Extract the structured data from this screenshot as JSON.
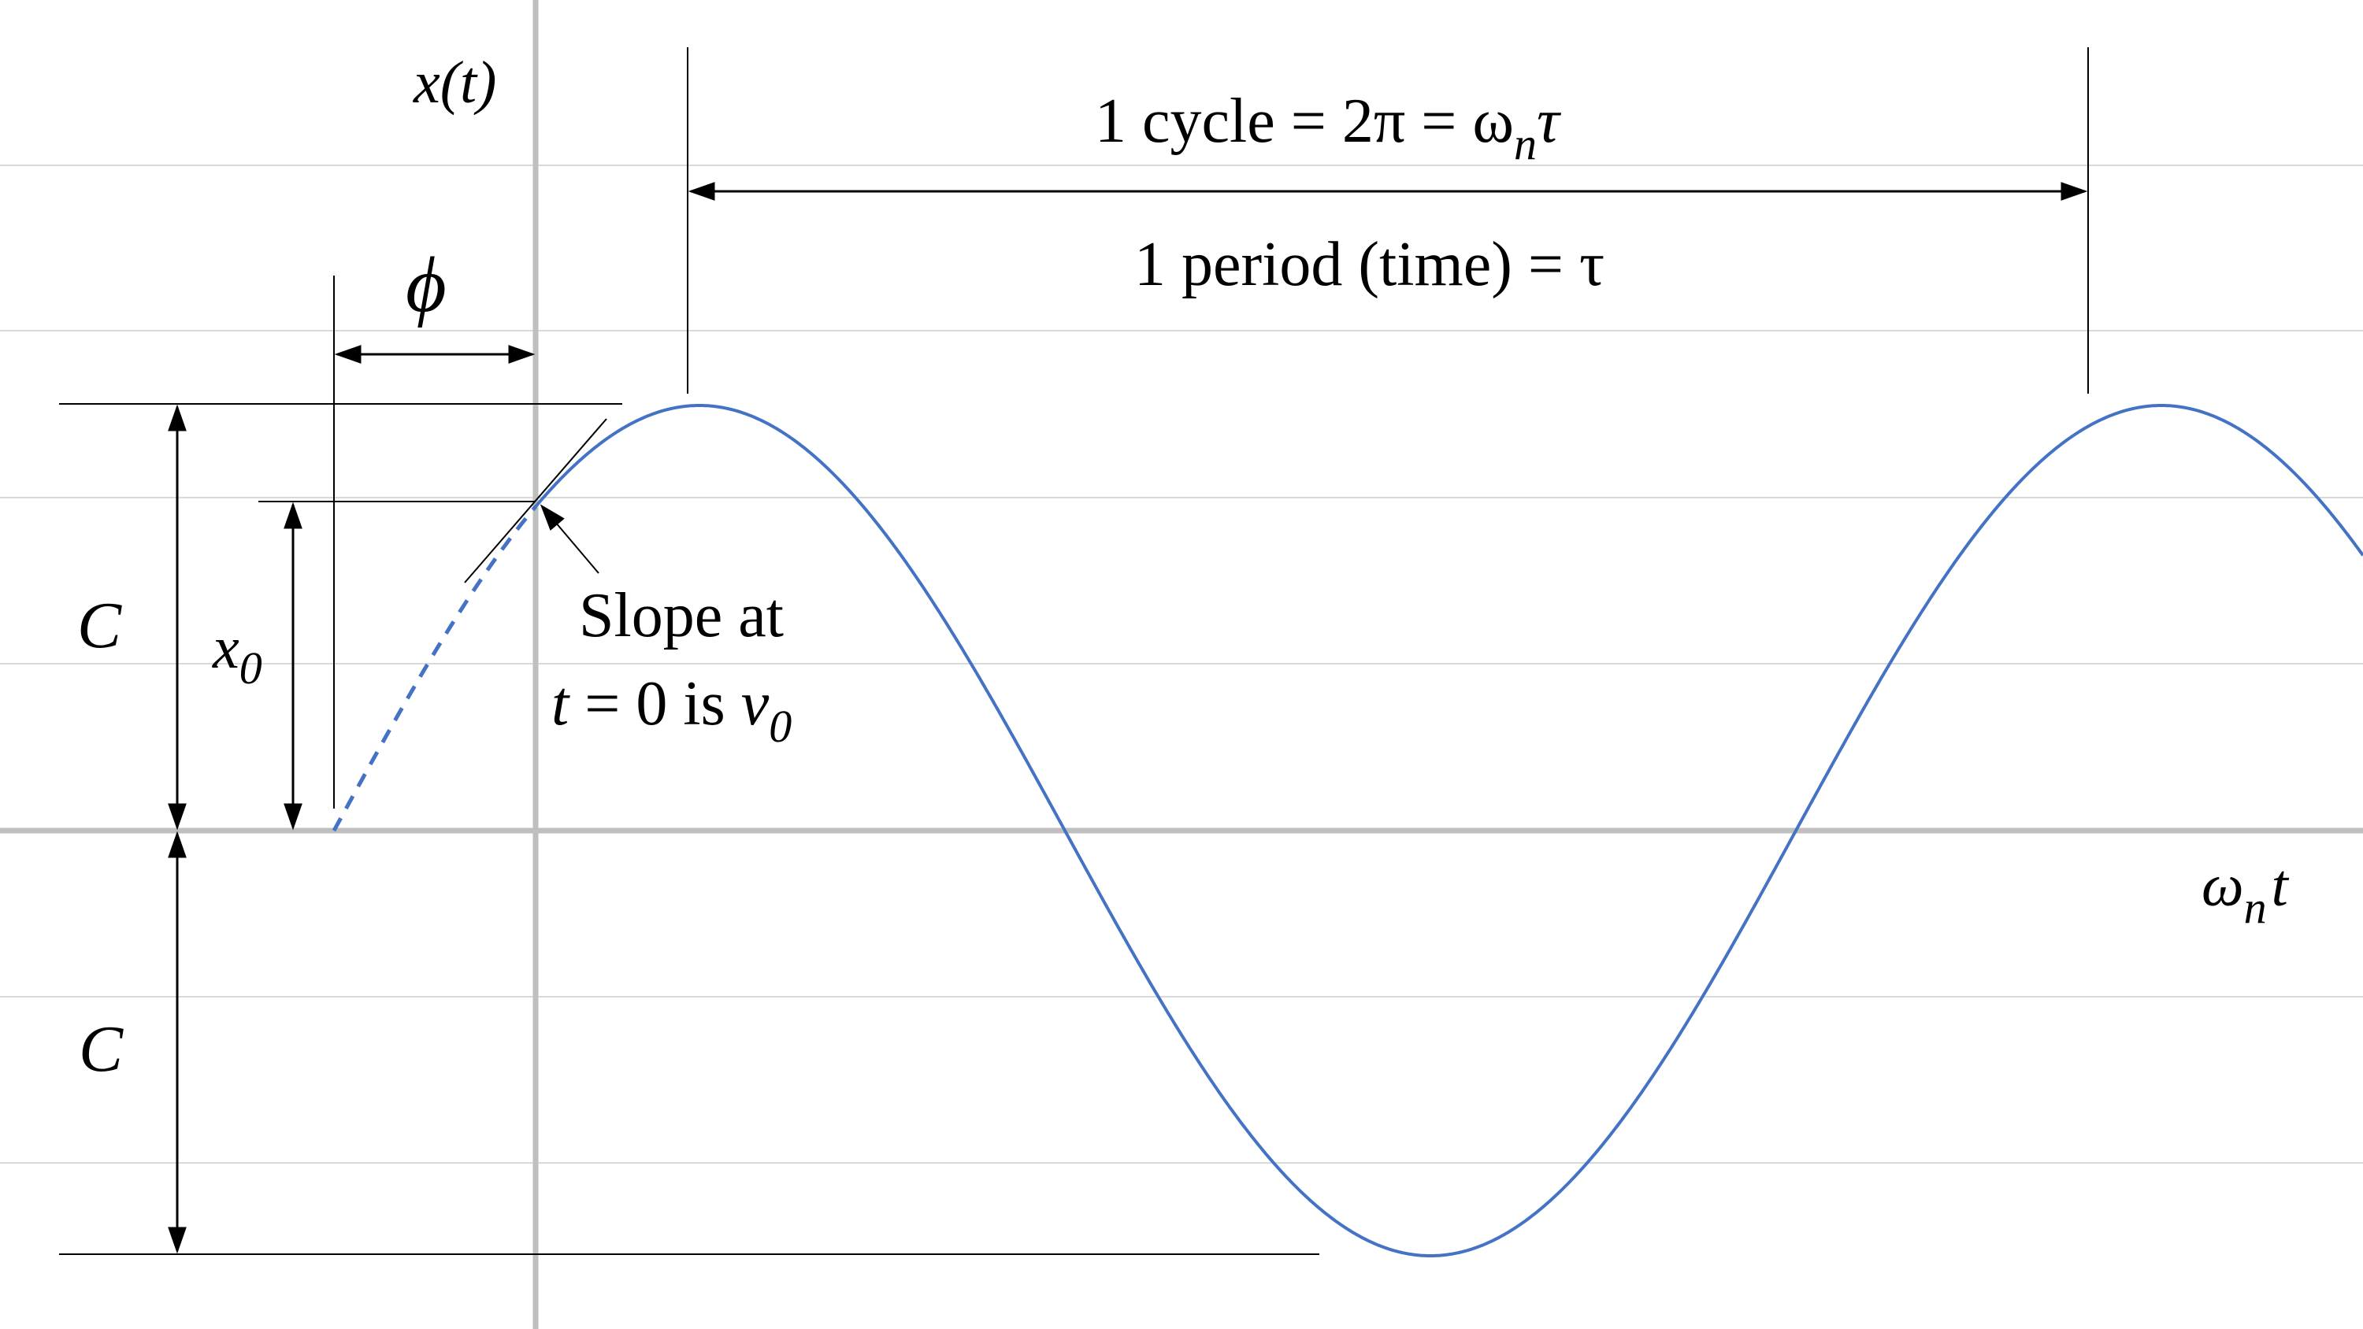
{
  "colors": {
    "curve": "#4472C4",
    "grid": "#d9d9d9",
    "axis": "#bfbfbf",
    "ink": "#000000"
  },
  "labels": {
    "y_axis": "x(t)",
    "x_axis_omega": "ω",
    "x_axis_sub": "n",
    "x_axis_t": "t",
    "phase": "ϕ",
    "cycle_1": "1 cycle =  2π =  ω",
    "cycle_sub": "n",
    "cycle_tau": "τ",
    "period": "1 period (time) = τ",
    "amplitude_upper": "C",
    "amplitude_lower": "C",
    "x0_main": "x",
    "x0_sub": "0",
    "slope_line1": "Slope at",
    "slope_t": "t",
    "slope_mid": " = 0 is ",
    "slope_v": "v",
    "slope_v_sub": "0"
  }
}
